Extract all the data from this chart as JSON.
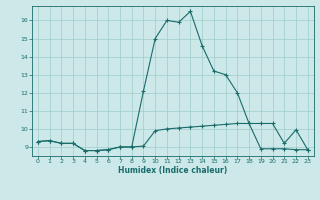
{
  "xlabel": "Humidex (Indice chaleur)",
  "bg_color": "#cce8e8",
  "grid_color": "#a0cccc",
  "line_color": "#1a6b6b",
  "xlim": [
    -0.5,
    23.5
  ],
  "ylim": [
    8.5,
    16.8
  ],
  "xticks": [
    0,
    1,
    2,
    3,
    4,
    5,
    6,
    7,
    8,
    9,
    10,
    11,
    12,
    13,
    14,
    15,
    16,
    17,
    18,
    19,
    20,
    21,
    22,
    23
  ],
  "yticks": [
    9,
    10,
    11,
    12,
    13,
    14,
    15,
    16
  ],
  "curve1_x": [
    0,
    1,
    2,
    3,
    4,
    5,
    6,
    7,
    8,
    9,
    10,
    11,
    12,
    13,
    14,
    15,
    16,
    17,
    18,
    19,
    20,
    21,
    22,
    23
  ],
  "curve1_y": [
    9.3,
    9.35,
    9.2,
    9.2,
    8.8,
    8.8,
    8.85,
    9.0,
    9.0,
    12.1,
    15.0,
    16.0,
    15.9,
    16.5,
    14.6,
    13.2,
    13.0,
    12.0,
    10.3,
    10.3,
    10.3,
    9.2,
    9.95,
    8.85
  ],
  "curve2_x": [
    0,
    1,
    2,
    3,
    4,
    5,
    6,
    7,
    8,
    9,
    10,
    11,
    12,
    13,
    14,
    15,
    16,
    17,
    18,
    19,
    20,
    21,
    22,
    23
  ],
  "curve2_y": [
    9.3,
    9.35,
    9.2,
    9.2,
    8.8,
    8.8,
    8.85,
    9.0,
    9.0,
    9.05,
    9.9,
    10.0,
    10.05,
    10.1,
    10.15,
    10.2,
    10.25,
    10.3,
    10.3,
    8.9,
    8.9,
    8.9,
    8.85,
    8.85
  ]
}
